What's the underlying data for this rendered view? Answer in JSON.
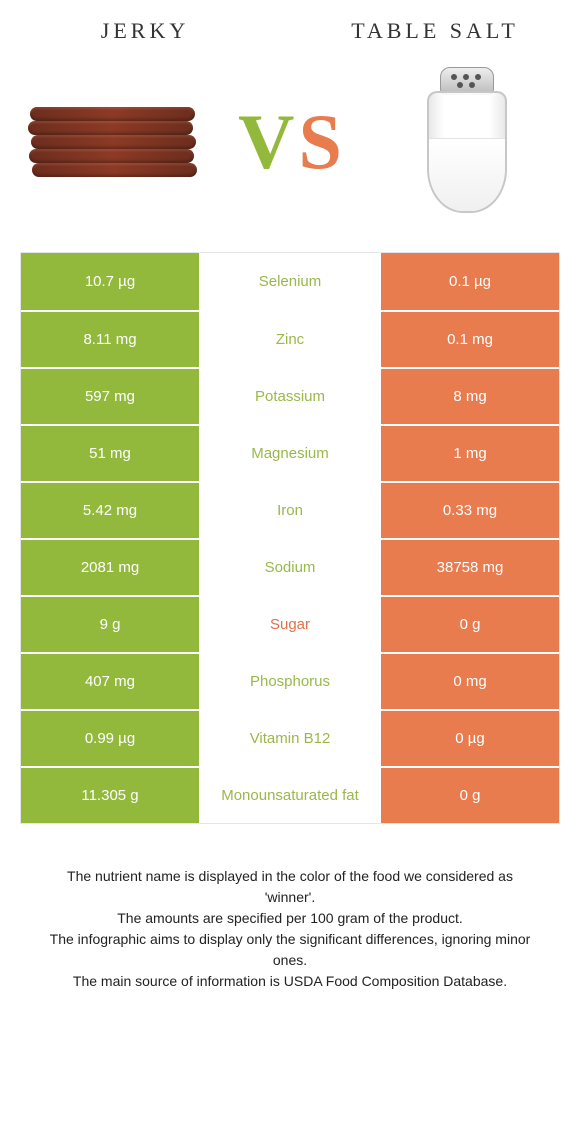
{
  "header": {
    "left_title": "Jerky",
    "right_title": "Table salt"
  },
  "vs": {
    "v": "V",
    "s": "S"
  },
  "colors": {
    "jerky": "#93b93c",
    "salt": "#e87c4e",
    "jerky_text_mid": "#9ab84a",
    "salt_text_mid": "#e0714a"
  },
  "nutrients": [
    {
      "left": "10.7 µg",
      "name": "Selenium",
      "right": "0.1 µg",
      "winner": "jerky"
    },
    {
      "left": "8.11 mg",
      "name": "Zinc",
      "right": "0.1 mg",
      "winner": "jerky"
    },
    {
      "left": "597 mg",
      "name": "Potassium",
      "right": "8 mg",
      "winner": "jerky"
    },
    {
      "left": "51 mg",
      "name": "Magnesium",
      "right": "1 mg",
      "winner": "jerky"
    },
    {
      "left": "5.42 mg",
      "name": "Iron",
      "right": "0.33 mg",
      "winner": "jerky"
    },
    {
      "left": "2081 mg",
      "name": "Sodium",
      "right": "38758 mg",
      "winner": "jerky"
    },
    {
      "left": "9 g",
      "name": "Sugar",
      "right": "0 g",
      "winner": "salt"
    },
    {
      "left": "407 mg",
      "name": "Phosphorus",
      "right": "0 mg",
      "winner": "jerky"
    },
    {
      "left": "0.99 µg",
      "name": "Vitamin B12",
      "right": "0 µg",
      "winner": "jerky"
    },
    {
      "left": "11.305 g",
      "name": "Monounsaturated fat",
      "right": "0 g",
      "winner": "jerky"
    }
  ],
  "footnote": {
    "l1": "The nutrient name is displayed in the color of the food we considered as 'winner'.",
    "l2": "The amounts are specified per 100 gram of the product.",
    "l3": "The infographic aims to display only the significant differences, ignoring minor ones.",
    "l4": "The main source of information is USDA Food Composition Database."
  }
}
